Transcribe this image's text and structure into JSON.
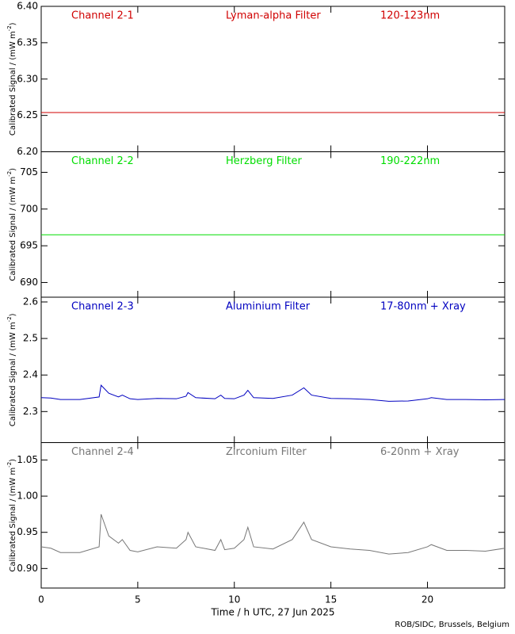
{
  "chart_data": [
    {
      "type": "line",
      "channel": "Channel 2-1",
      "filter": "Lyman-alpha Filter",
      "band": "120-123nm",
      "ylabel": "Calibrated Signal / (mW m",
      "ylabel_sup": "-2",
      "ylabel_end": ")",
      "xlim": [
        0,
        24
      ],
      "xticks": [
        0,
        5,
        10,
        15,
        20
      ],
      "ylim": [
        6.2,
        6.4
      ],
      "yticks": [
        {
          "value": 6.2,
          "label": "6.20"
        },
        6.25,
        {
          "value": 6.3,
          "label": "6.30"
        },
        6.35,
        {
          "value": 6.4,
          "label": "6.40"
        }
      ],
      "color": "#d00000",
      "x": [
        0,
        24
      ],
      "values": [
        6.254,
        6.254
      ]
    },
    {
      "type": "line",
      "channel": "Channel 2-2",
      "filter": "Herzberg Filter",
      "band": "190-222nm",
      "ylabel": "Calibrated Signal / (mW m",
      "ylabel_sup": "-2",
      "ylabel_end": ")",
      "xlim": [
        0,
        24
      ],
      "xticks": [
        0,
        5,
        10,
        15,
        20
      ],
      "ylim": [
        688,
        707.8
      ],
      "yticks": [
        690,
        695,
        700,
        705
      ],
      "color": "#00dd00",
      "x": [
        0,
        24
      ],
      "values": [
        696.5,
        696.5
      ]
    },
    {
      "type": "line",
      "channel": "Channel 2-3",
      "filter": "Aluminium Filter",
      "band": "17-80nm + Xray",
      "ylabel": "Calibrated Signal / (mW m",
      "ylabel_sup": "-2",
      "ylabel_end": ")",
      "xlim": [
        0,
        24
      ],
      "xticks": [
        0,
        5,
        10,
        15,
        20
      ],
      "ylim": [
        2.215,
        2.613
      ],
      "yticks": [
        2.3,
        2.4,
        2.5,
        2.6
      ],
      "color": "#0000c0",
      "x": [
        0,
        0.5,
        1,
        2,
        3,
        3.1,
        3.5,
        4,
        4.2,
        4.6,
        5,
        6,
        7,
        7.5,
        7.6,
        8,
        9,
        9.3,
        9.5,
        10,
        10.5,
        10.7,
        11,
        12,
        13,
        13.6,
        14,
        15,
        16,
        17,
        18,
        19,
        20,
        20.2,
        21,
        22,
        23,
        24
      ],
      "values": [
        2.338,
        2.337,
        2.333,
        2.333,
        2.34,
        2.372,
        2.35,
        2.34,
        2.345,
        2.335,
        2.333,
        2.336,
        2.335,
        2.342,
        2.352,
        2.338,
        2.335,
        2.345,
        2.336,
        2.335,
        2.345,
        2.358,
        2.338,
        2.336,
        2.345,
        2.365,
        2.345,
        2.336,
        2.335,
        2.333,
        2.328,
        2.329,
        2.335,
        2.338,
        2.333,
        2.333,
        2.332,
        2.333
      ]
    },
    {
      "type": "line",
      "channel": "Channel 2-4",
      "filter": "Zirconium Filter",
      "band": "6-20nm + Xray",
      "ylabel": "Calibrated Signal / (mW m",
      "ylabel_sup": "-2",
      "ylabel_end": ")",
      "xlim": [
        0,
        24
      ],
      "xticks": [
        0,
        5,
        10,
        15,
        20
      ],
      "xlabel": "Time / h UTC, 27 Jun 2025",
      "ylim": [
        0.873,
        1.074
      ],
      "yticks": [
        {
          "value": 0.9,
          "label": "0.90"
        },
        0.95,
        {
          "value": 1.0,
          "label": "1.00"
        },
        1.05
      ],
      "color": "#777777",
      "x": [
        0,
        0.5,
        1,
        2,
        3,
        3.1,
        3.5,
        4,
        4.2,
        4.6,
        5,
        6,
        7,
        7.5,
        7.6,
        8,
        9,
        9.3,
        9.5,
        10,
        10.5,
        10.7,
        11,
        12,
        13,
        13.6,
        14,
        15,
        16,
        17,
        18,
        19,
        20,
        20.2,
        21,
        22,
        23,
        24
      ],
      "values": [
        0.93,
        0.928,
        0.922,
        0.922,
        0.93,
        0.975,
        0.945,
        0.935,
        0.94,
        0.925,
        0.923,
        0.93,
        0.928,
        0.94,
        0.95,
        0.93,
        0.925,
        0.94,
        0.926,
        0.928,
        0.94,
        0.957,
        0.93,
        0.927,
        0.94,
        0.964,
        0.94,
        0.93,
        0.927,
        0.925,
        0.92,
        0.922,
        0.93,
        0.933,
        0.925,
        0.925,
        0.924,
        0.928
      ]
    }
  ],
  "footer": "ROB/SIDC, Brussels, Belgium"
}
